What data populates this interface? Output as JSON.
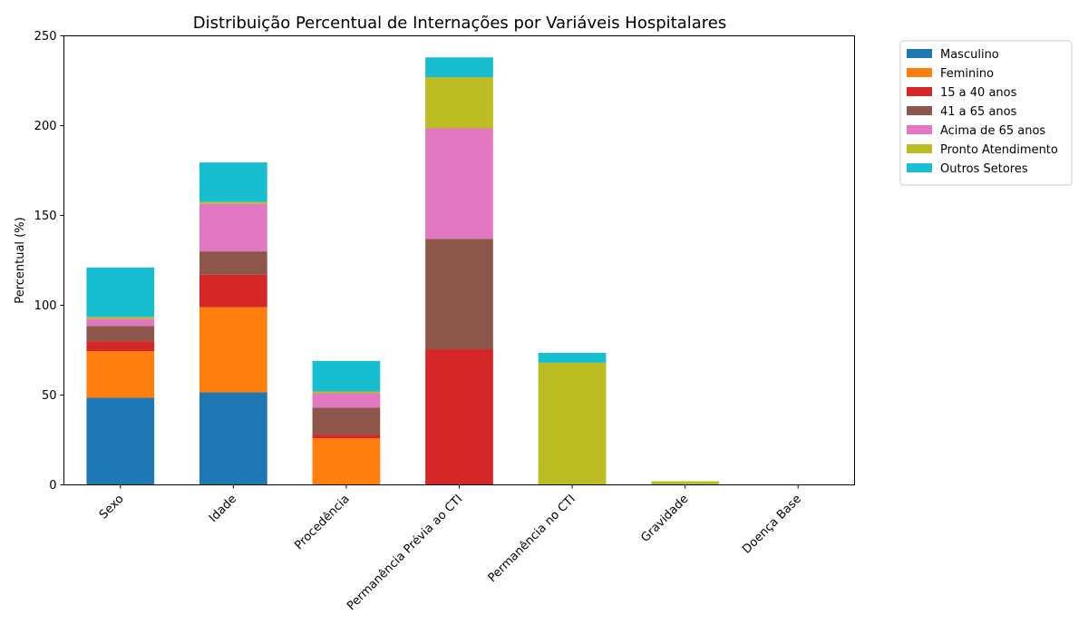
{
  "chart_data": {
    "type": "bar",
    "stacked": true,
    "title": "Distribuição Percentual de Internações por Variáveis Hospitalares",
    "xlabel": "",
    "ylabel": "Percentual (%)",
    "ylim": [
      0,
      250
    ],
    "yticks": [
      "0",
      "50",
      "100",
      "150",
      "200",
      "250"
    ],
    "grid": false,
    "legend_position": "outside top-right",
    "categories": [
      "Sexo",
      "Idade",
      "Procedência",
      "Permanência Prévia ao CTI",
      "Permanência no CTI",
      "Gravidade",
      "Doença Base"
    ],
    "series": [
      {
        "name": "Masculino",
        "color": "#1f77b4",
        "values": [
          48.5,
          51.5,
          0,
          0,
          0,
          0,
          0
        ]
      },
      {
        "name": "Feminino",
        "color": "#ff7f0e",
        "values": [
          26,
          47.5,
          26,
          0,
          0,
          0,
          0
        ]
      },
      {
        "name": "15 a 40 anos",
        "color": "#d62728",
        "values": [
          5.5,
          18,
          2,
          75.5,
          0,
          0,
          0
        ]
      },
      {
        "name": "41 a 65 anos",
        "color": "#8c564b",
        "values": [
          8.5,
          13,
          15,
          61.5,
          0,
          0,
          0
        ]
      },
      {
        "name": "Acima de 65 anos",
        "color": "#e377c2",
        "values": [
          4,
          26.5,
          8,
          61.5,
          0,
          0,
          0
        ]
      },
      {
        "name": "Pronto Atendimento",
        "color": "#bcbd22",
        "values": [
          1,
          1,
          1,
          28.5,
          68,
          2,
          0
        ]
      },
      {
        "name": "Outros Setores",
        "color": "#17becf",
        "values": [
          27.5,
          22,
          17,
          11,
          5.5,
          0,
          0
        ]
      }
    ]
  }
}
